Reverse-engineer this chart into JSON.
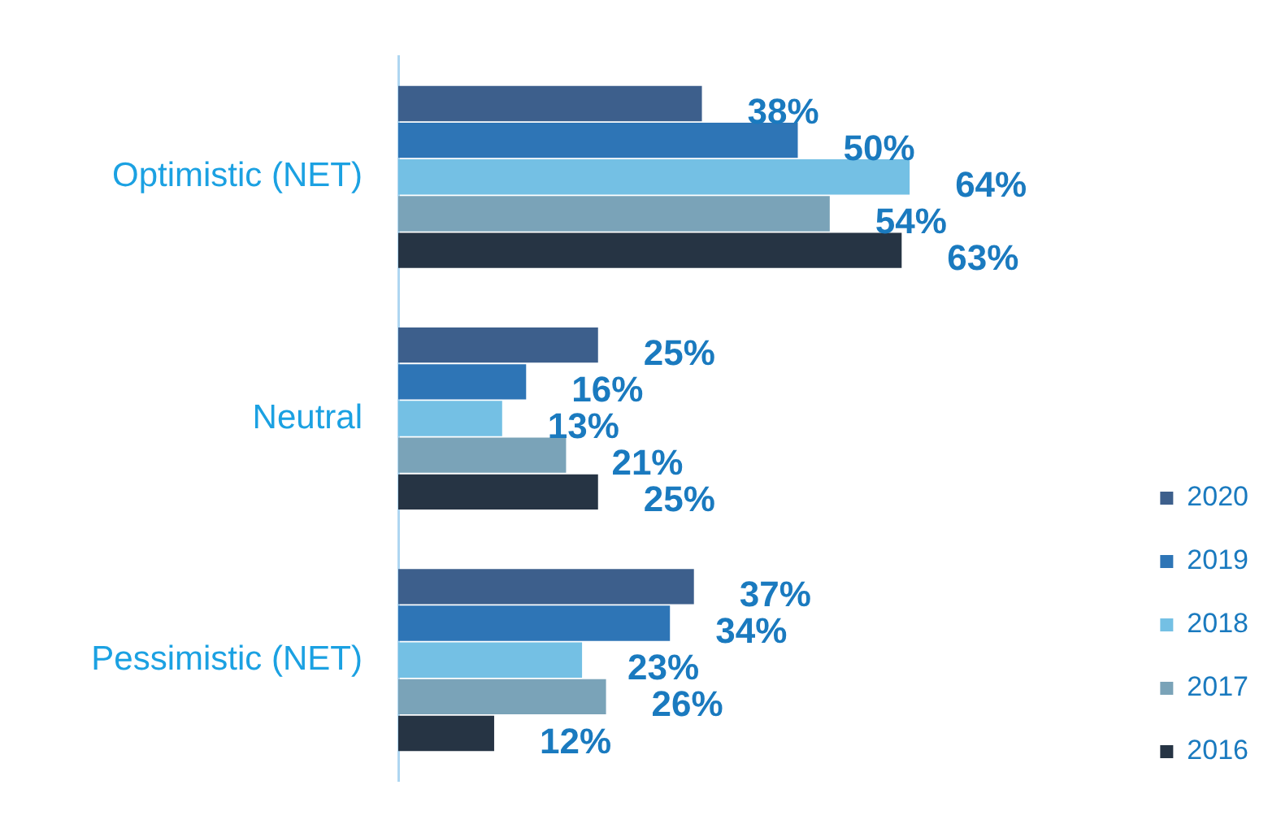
{
  "chart_data": {
    "type": "bar",
    "orientation": "horizontal",
    "categories": [
      "Optimistic (NET)",
      "Neutral",
      "Pessimistic (NET)"
    ],
    "series": [
      {
        "name": "2020",
        "color": "#3d5f8c",
        "values": [
          38,
          25,
          37
        ],
        "value_labels": [
          "38%",
          "25%",
          "37%"
        ]
      },
      {
        "name": "2019",
        "color": "#2e75b6",
        "values": [
          50,
          16,
          34
        ],
        "value_labels": [
          "50%",
          "16%",
          "34%"
        ]
      },
      {
        "name": "2018",
        "color": "#74c0e4",
        "values": [
          64,
          13,
          23
        ],
        "value_labels": [
          "64%",
          "13%",
          "23%"
        ]
      },
      {
        "name": "2017",
        "color": "#7aa3b8",
        "values": [
          54,
          21,
          26
        ],
        "value_labels": [
          "54%",
          "21%",
          "26%"
        ]
      },
      {
        "name": "2016",
        "color": "#263444",
        "values": [
          63,
          25,
          12
        ],
        "value_labels": [
          "63%",
          "25%",
          "12%"
        ]
      }
    ],
    "legend": "bottom right"
  }
}
